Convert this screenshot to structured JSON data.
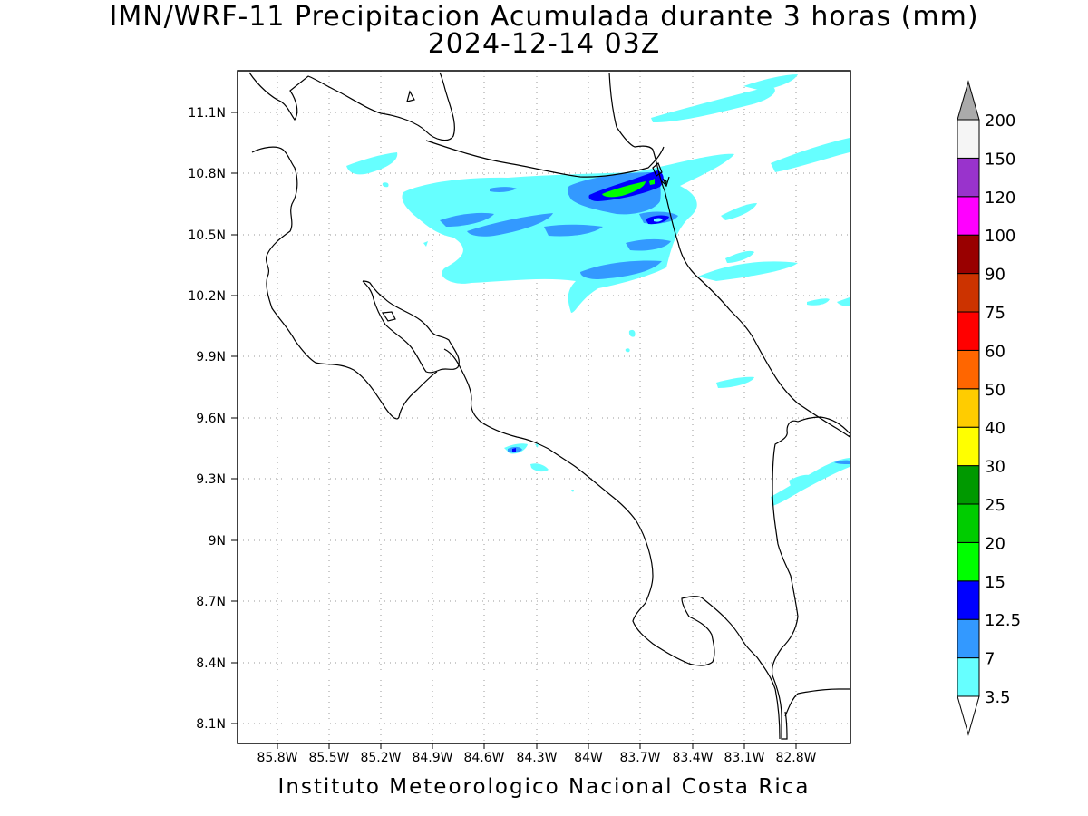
{
  "title": {
    "line1": "IMN/WRF-11 Precipitacion Acumulada durante 3 horas (mm)",
    "line2": "2024-12-14 03Z"
  },
  "footer": "Instituto Meteorologico Nacional Costa Rica",
  "map": {
    "lon_range": [
      -86.15,
      -82.5
    ],
    "lat_range": [
      8.0,
      11.3
    ],
    "x_ticks": [
      "85.8W",
      "85.5W",
      "85.2W",
      "84.9W",
      "84.6W",
      "84.3W",
      "84W",
      "83.7W",
      "83.4W",
      "83.1W",
      "82.8W"
    ],
    "y_ticks": [
      "11.1N",
      "10.8N",
      "10.5N",
      "10.2N",
      "9.9N",
      "9.6N",
      "9.3N",
      "9N",
      "8.7N",
      "8.4N",
      "8.1N"
    ],
    "grid": "dotted"
  },
  "colorbar": {
    "labels": [
      "3.5",
      "7",
      "12.5",
      "15",
      "20",
      "25",
      "30",
      "40",
      "50",
      "60",
      "75",
      "90",
      "100",
      "120",
      "150",
      "200"
    ],
    "colors": [
      "#66ffff",
      "#3399ff",
      "#0000ff",
      "#00ff00",
      "#00cc00",
      "#009900",
      "#ffff00",
      "#ffcc00",
      "#ff6600",
      "#ff0000",
      "#cc3300",
      "#990000",
      "#ff00ff",
      "#9933cc",
      "#f5f5f5",
      "#aaaaaa"
    ]
  },
  "precip_colors": {
    "light": "#66ffff",
    "medium": "#3399ff",
    "heavy": "#0000ff",
    "intense": "#00ff00"
  }
}
